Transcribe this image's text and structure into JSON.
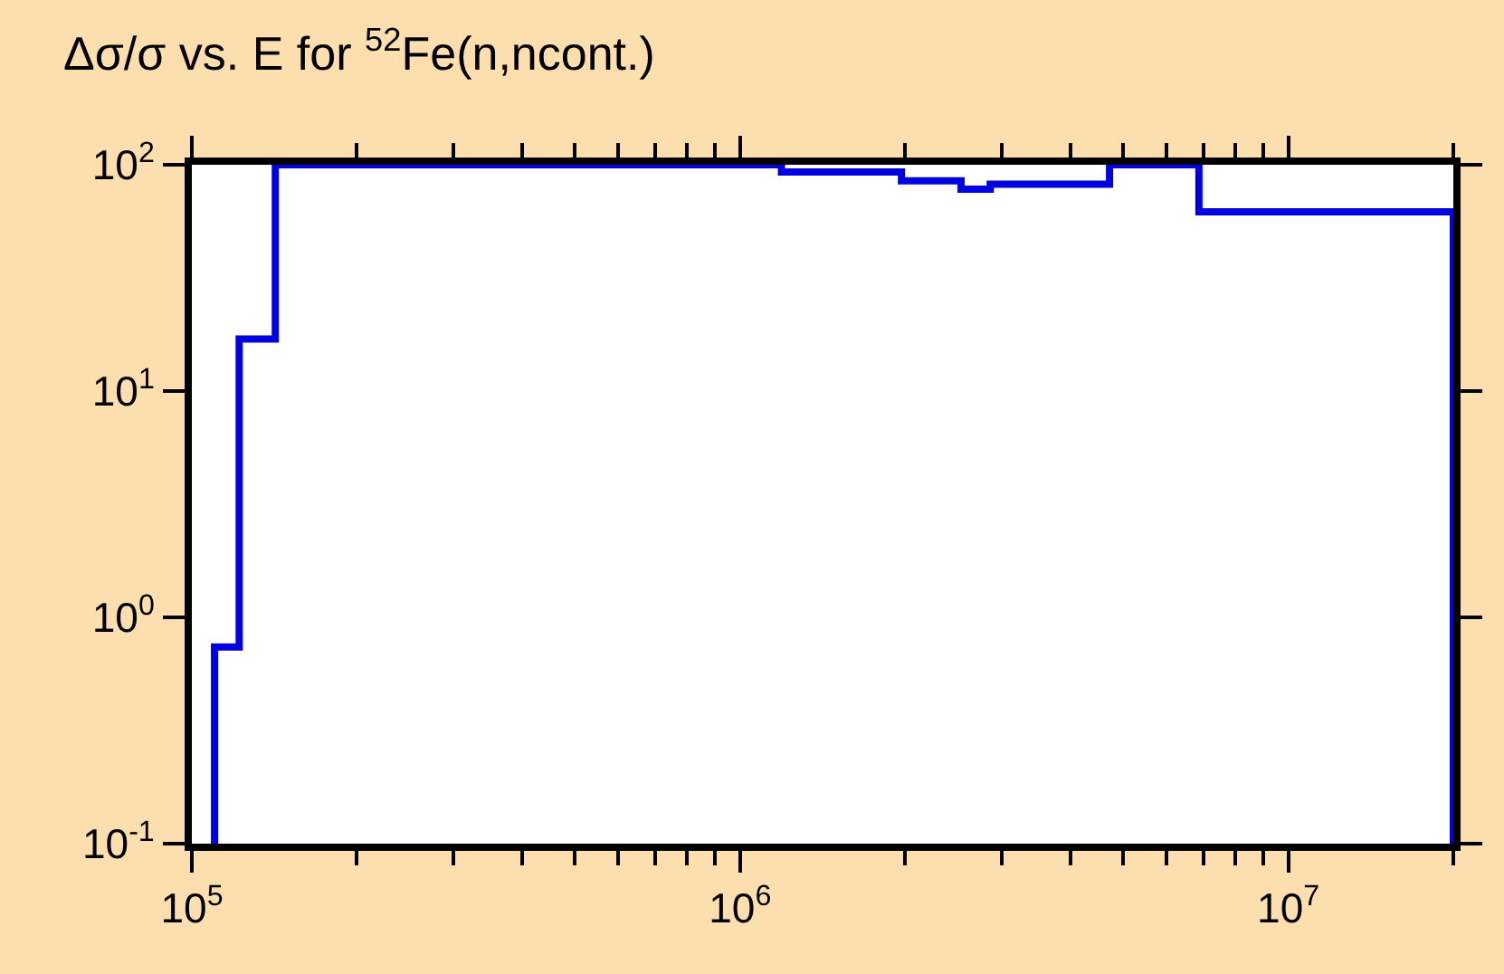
{
  "chart_data": {
    "type": "histogram",
    "title": "Δσ/σ vs. E for $^{52}$Fe(n,ncont.)",
    "bins": [
      110000,
      122000,
      142000,
      1190000,
      1970000,
      2530000,
      2860000,
      4720000,
      6870000,
      20000000
    ],
    "values": [
      0.74,
      17,
      100,
      93,
      85,
      78,
      82,
      100,
      62
    ],
    "color": "#0000e0",
    "log": "xy",
    "xlim": [
      100000,
      20000000
    ],
    "ylim": [
      0.1,
      100
    ],
    "xticks": [
      {
        "value": 100000,
        "label": "10$^{5}$"
      },
      {
        "value": 200000,
        "label": null
      },
      {
        "value": 300000,
        "label": null
      },
      {
        "value": 400000,
        "label": null
      },
      {
        "value": 500000,
        "label": null
      },
      {
        "value": 600000,
        "label": null
      },
      {
        "value": 700000,
        "label": null
      },
      {
        "value": 800000,
        "label": null
      },
      {
        "value": 900000,
        "label": null
      },
      {
        "value": 1000000,
        "label": "10$^{6}$"
      },
      {
        "value": 2000000,
        "label": null
      },
      {
        "value": 3000000,
        "label": null
      },
      {
        "value": 4000000,
        "label": null
      },
      {
        "value": 5000000,
        "label": null
      },
      {
        "value": 6000000,
        "label": null
      },
      {
        "value": 7000000,
        "label": null
      },
      {
        "value": 8000000,
        "label": null
      },
      {
        "value": 9000000,
        "label": null
      },
      {
        "value": 10000000,
        "label": "10$^{7}$"
      },
      {
        "value": 20000000,
        "label": null
      }
    ],
    "yticks": [
      {
        "value": 0.1,
        "label": "10$^{-1}$"
      },
      {
        "value": 1,
        "label": "10$^{0}$"
      },
      {
        "value": 10,
        "label": "10$^{1}$"
      },
      {
        "value": 100,
        "label": "10$^{2}$"
      }
    ]
  }
}
